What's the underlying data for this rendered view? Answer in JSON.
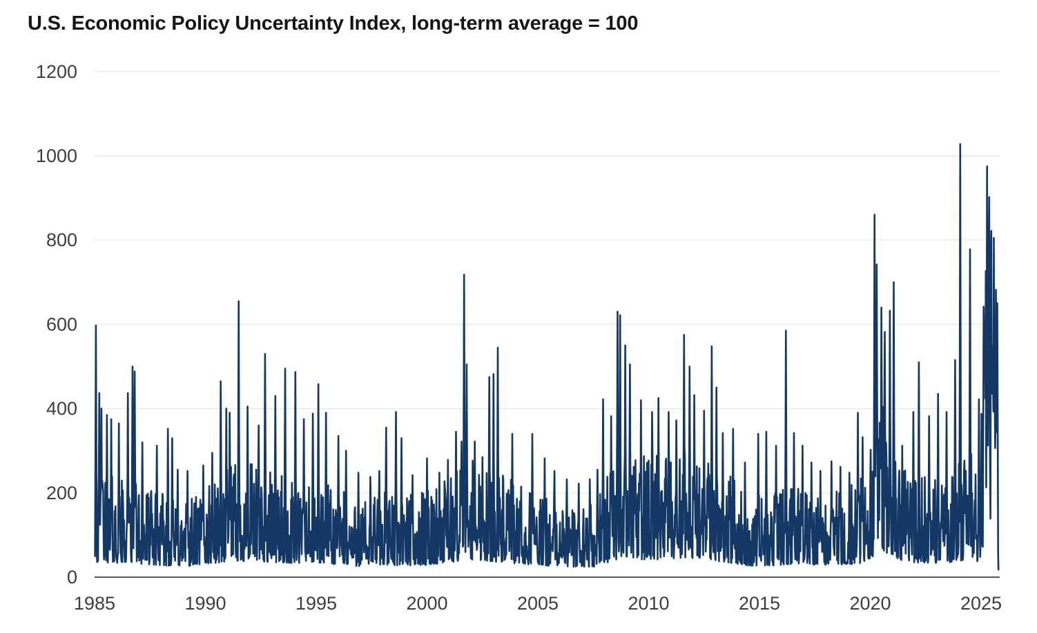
{
  "title": "U.S. Economic Policy Uncertainty Index, long-term average = 100",
  "colors": {
    "line": "#143866",
    "grid": "#e8e8e8",
    "axis_line": "#222222",
    "tick_text": "#3d3d3d",
    "title_text": "#151515",
    "background": "#ffffff"
  },
  "chart_data": {
    "type": "line",
    "title": "U.S. Economic Policy Uncertainty Index, long-term average = 100",
    "series_name": "U.S. Economic Policy Uncertainty Index",
    "long_term_average": 100,
    "xlabel": "",
    "ylabel": "",
    "x_range": [
      1985,
      2026
    ],
    "ylim": [
      0,
      1200
    ],
    "y_ticks": [
      0,
      200,
      400,
      600,
      800,
      1000,
      1200
    ],
    "x_ticks": [
      1985,
      1990,
      1995,
      2000,
      2005,
      2010,
      2015,
      2020,
      2025
    ],
    "grid": "horizontal",
    "legend": "none",
    "line_color": "#143866",
    "baseline_anchors": [
      [
        1985.0,
        112
      ],
      [
        1986.0,
        106
      ],
      [
        1987.0,
        100
      ],
      [
        1988.0,
        88
      ],
      [
        1989.0,
        80
      ],
      [
        1990.0,
        95
      ],
      [
        1991.0,
        116
      ],
      [
        1992.0,
        120
      ],
      [
        1993.0,
        110
      ],
      [
        1994.0,
        102
      ],
      [
        1995.0,
        100
      ],
      [
        1996.0,
        94
      ],
      [
        1997.0,
        80
      ],
      [
        1998.0,
        94
      ],
      [
        1999.0,
        86
      ],
      [
        2000.0,
        90
      ],
      [
        2001.0,
        108
      ],
      [
        2001.8,
        132
      ],
      [
        2002.5,
        126
      ],
      [
        2003.5,
        106
      ],
      [
        2004.5,
        92
      ],
      [
        2005.5,
        85
      ],
      [
        2006.5,
        76
      ],
      [
        2007.5,
        76
      ],
      [
        2008.2,
        112
      ],
      [
        2008.8,
        142
      ],
      [
        2009.5,
        132
      ],
      [
        2010.5,
        130
      ],
      [
        2011.5,
        140
      ],
      [
        2012.5,
        130
      ],
      [
        2013.5,
        112
      ],
      [
        2014.5,
        86
      ],
      [
        2015.5,
        86
      ],
      [
        2016.5,
        96
      ],
      [
        2017.5,
        92
      ],
      [
        2018.5,
        92
      ],
      [
        2019.5,
        100
      ],
      [
        2020.1,
        150
      ],
      [
        2020.35,
        222
      ],
      [
        2020.8,
        170
      ],
      [
        2021.1,
        150
      ],
      [
        2021.6,
        112
      ],
      [
        2022.5,
        106
      ],
      [
        2023.5,
        102
      ],
      [
        2024.0,
        122
      ],
      [
        2024.5,
        132
      ],
      [
        2024.9,
        112
      ],
      [
        2025.05,
        200
      ],
      [
        2025.3,
        420
      ],
      [
        2025.5,
        400
      ],
      [
        2025.65,
        352
      ],
      [
        2025.74,
        300
      ],
      [
        2025.78,
        120
      ]
    ],
    "spikes": [
      [
        1985.05,
        597
      ],
      [
        1985.22,
        437
      ],
      [
        1985.3,
        400
      ],
      [
        1985.55,
        385
      ],
      [
        1985.75,
        375
      ],
      [
        1986.1,
        365
      ],
      [
        1986.5,
        437
      ],
      [
        1986.72,
        500
      ],
      [
        1986.8,
        488
      ],
      [
        1987.15,
        320
      ],
      [
        1987.8,
        312
      ],
      [
        1988.3,
        352
      ],
      [
        1988.5,
        330
      ],
      [
        1988.75,
        255
      ],
      [
        1989.2,
        252
      ],
      [
        1989.9,
        265
      ],
      [
        1990.3,
        295
      ],
      [
        1990.7,
        465
      ],
      [
        1990.95,
        400
      ],
      [
        1991.1,
        390
      ],
      [
        1991.5,
        655
      ],
      [
        1991.9,
        405
      ],
      [
        1992.4,
        360
      ],
      [
        1992.7,
        530
      ],
      [
        1993.15,
        430
      ],
      [
        1993.6,
        495
      ],
      [
        1994.05,
        487
      ],
      [
        1994.45,
        375
      ],
      [
        1994.85,
        388
      ],
      [
        1995.1,
        458
      ],
      [
        1995.45,
        390
      ],
      [
        1996.0,
        335
      ],
      [
        1996.35,
        300
      ],
      [
        1996.9,
        248
      ],
      [
        1997.45,
        238
      ],
      [
        1997.85,
        252
      ],
      [
        1998.15,
        355
      ],
      [
        1998.6,
        392
      ],
      [
        1998.85,
        330
      ],
      [
        1999.35,
        242
      ],
      [
        2000.0,
        282
      ],
      [
        2000.55,
        248
      ],
      [
        2000.95,
        278
      ],
      [
        2001.3,
        345
      ],
      [
        2001.55,
        322
      ],
      [
        2001.68,
        718
      ],
      [
        2001.78,
        505
      ],
      [
        2002.15,
        322
      ],
      [
        2002.5,
        285
      ],
      [
        2002.8,
        475
      ],
      [
        2003.0,
        482
      ],
      [
        2003.2,
        545
      ],
      [
        2003.85,
        340
      ],
      [
        2004.75,
        340
      ],
      [
        2005.3,
        282
      ],
      [
        2005.75,
        252
      ],
      [
        2006.3,
        232
      ],
      [
        2006.85,
        222
      ],
      [
        2007.35,
        232
      ],
      [
        2007.7,
        255
      ],
      [
        2007.95,
        422
      ],
      [
        2008.3,
        382
      ],
      [
        2008.6,
        630
      ],
      [
        2008.72,
        622
      ],
      [
        2008.95,
        550
      ],
      [
        2009.15,
        505
      ],
      [
        2009.65,
        420
      ],
      [
        2010.15,
        392
      ],
      [
        2010.45,
        425
      ],
      [
        2010.9,
        392
      ],
      [
        2011.25,
        372
      ],
      [
        2011.6,
        575
      ],
      [
        2011.85,
        500
      ],
      [
        2012.05,
        432
      ],
      [
        2012.5,
        395
      ],
      [
        2012.85,
        548
      ],
      [
        2013.05,
        450
      ],
      [
        2013.35,
        342
      ],
      [
        2013.8,
        352
      ],
      [
        2014.35,
        272
      ],
      [
        2014.95,
        340
      ],
      [
        2015.3,
        345
      ],
      [
        2015.75,
        312
      ],
      [
        2016.2,
        585
      ],
      [
        2016.55,
        342
      ],
      [
        2016.95,
        312
      ],
      [
        2017.35,
        272
      ],
      [
        2017.75,
        252
      ],
      [
        2018.25,
        275
      ],
      [
        2018.65,
        262
      ],
      [
        2019.05,
        248
      ],
      [
        2019.45,
        390
      ],
      [
        2019.65,
        332
      ],
      [
        2020.2,
        860
      ],
      [
        2020.28,
        742
      ],
      [
        2020.5,
        640
      ],
      [
        2020.65,
        582
      ],
      [
        2020.88,
        632
      ],
      [
        2021.05,
        700
      ],
      [
        2021.45,
        312
      ],
      [
        2021.95,
        392
      ],
      [
        2022.2,
        510
      ],
      [
        2022.65,
        382
      ],
      [
        2023.05,
        435
      ],
      [
        2023.45,
        392
      ],
      [
        2023.82,
        515
      ],
      [
        2024.05,
        1028
      ],
      [
        2024.5,
        778
      ],
      [
        2024.9,
        422
      ],
      [
        2025.12,
        642
      ],
      [
        2025.27,
        975
      ],
      [
        2025.37,
        902
      ],
      [
        2025.47,
        822
      ],
      [
        2025.57,
        742
      ],
      [
        2025.67,
        682
      ],
      [
        2025.73,
        650
      ]
    ],
    "last_point": [
      2025.785,
      18
    ]
  }
}
